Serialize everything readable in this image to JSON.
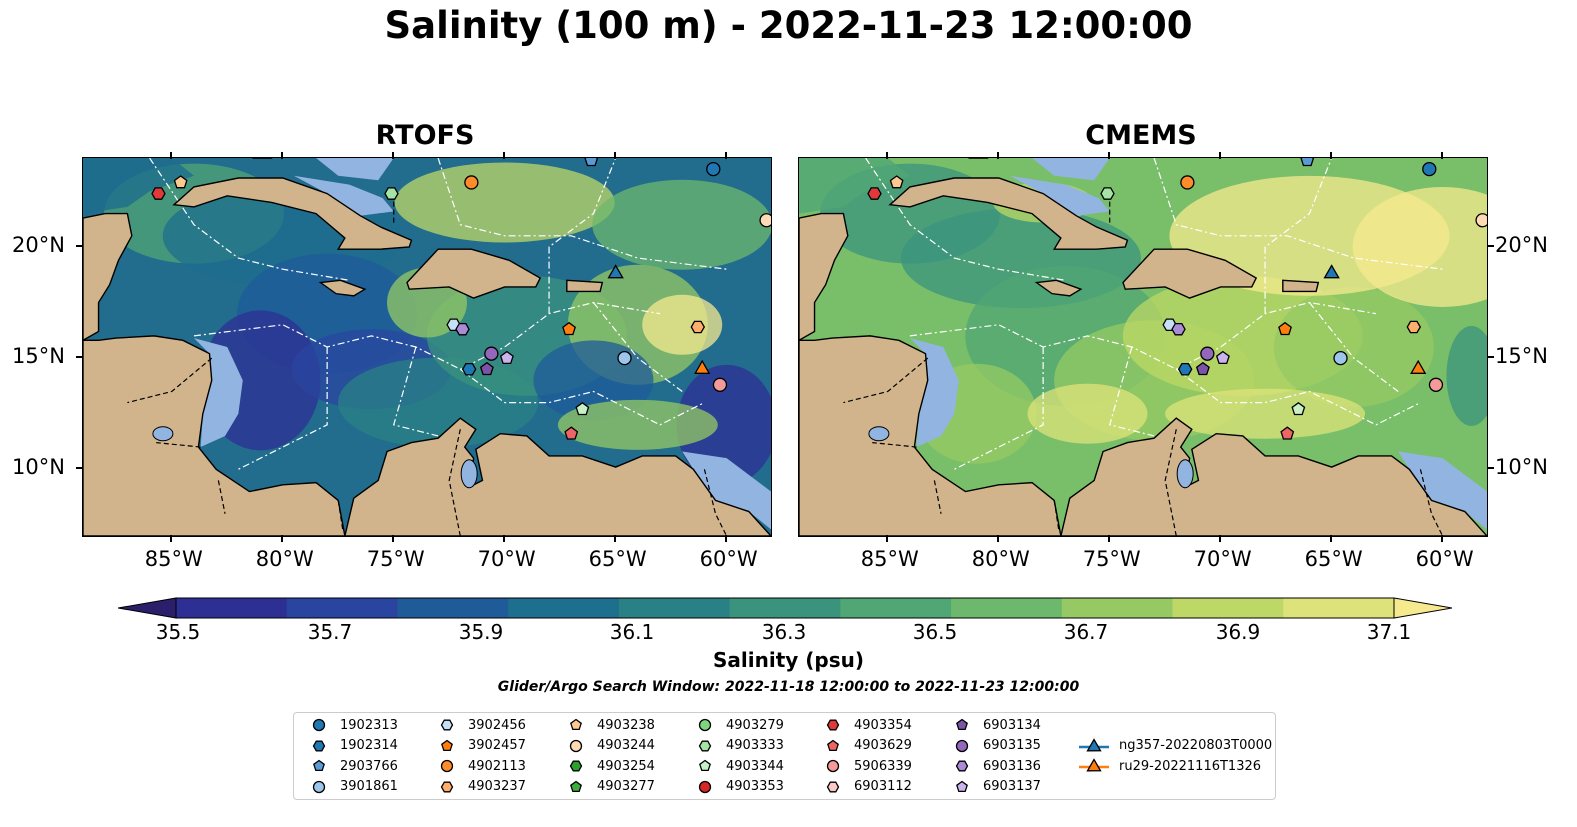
{
  "title": "Salinity (100 m) - 2022-11-23 12:00:00",
  "panels": [
    {
      "title": "RTOFS",
      "style": "rtofs"
    },
    {
      "title": "CMEMS",
      "style": "cmems"
    }
  ],
  "longitude_ticks": [
    "85°W",
    "80°W",
    "75°W",
    "70°W",
    "65°W",
    "60°W"
  ],
  "latitude_ticks": [
    "20°N",
    "15°N",
    "10°N"
  ],
  "colorbar": {
    "labels": [
      "35.5",
      "35.7",
      "35.9",
      "36.1",
      "36.3",
      "36.5",
      "36.7",
      "36.9",
      "37.1"
    ],
    "title": "Salinity (psu)",
    "colors": [
      "#2b1f6b",
      "#2e2f94",
      "#2a45a0",
      "#1f5b99",
      "#1e6e8d",
      "#2a8185",
      "#3b937d",
      "#50a674",
      "#6db86c",
      "#96c963",
      "#bdd866",
      "#dde37a",
      "#f6e98e"
    ]
  },
  "search_window": "Glider/Argo Search Window: 2022-11-18 12:00:00 to 2022-11-23 12:00:00",
  "colors": {
    "land": "#d2b48c",
    "shelf": "#92b4e0",
    "glider_line_blue": "#1f77b4",
    "glider_line_orange": "#ff7f0e"
  },
  "legend": [
    {
      "label": "1902313",
      "marker": "circle",
      "color": "#1f77b4"
    },
    {
      "label": "1902314",
      "marker": "hexagon",
      "color": "#1f77b4"
    },
    {
      "label": "2903766",
      "marker": "pentagon",
      "color": "#5b9bd5"
    },
    {
      "label": "3901861",
      "marker": "circle",
      "color": "#9ec5ea"
    },
    {
      "label": "3902456",
      "marker": "hexagon",
      "color": "#c6e0f5"
    },
    {
      "label": "3902457",
      "marker": "pentagon",
      "color": "#ff7f0e"
    },
    {
      "label": "4902113",
      "marker": "circle",
      "color": "#ff8c2a"
    },
    {
      "label": "4903237",
      "marker": "hexagon",
      "color": "#ffae6b"
    },
    {
      "label": "4903238",
      "marker": "pentagon",
      "color": "#ffc890"
    },
    {
      "label": "4903244",
      "marker": "circle",
      "color": "#ffdab5"
    },
    {
      "label": "4903254",
      "marker": "hexagon",
      "color": "#2ca02c"
    },
    {
      "label": "4903277",
      "marker": "pentagon",
      "color": "#3cae3c"
    },
    {
      "label": "4903279",
      "marker": "circle",
      "color": "#7fd47f"
    },
    {
      "label": "4903333",
      "marker": "hexagon",
      "color": "#a6e3a6"
    },
    {
      "label": "4903344",
      "marker": "pentagon",
      "color": "#c7f0c7"
    },
    {
      "label": "4903353",
      "marker": "circle",
      "color": "#d62728"
    },
    {
      "label": "4903354",
      "marker": "hexagon",
      "color": "#e0393a"
    },
    {
      "label": "4903629",
      "marker": "pentagon",
      "color": "#ee6566"
    },
    {
      "label": "5906339",
      "marker": "circle",
      "color": "#f49a9a"
    },
    {
      "label": "6903112",
      "marker": "hexagon",
      "color": "#fcc8c8"
    },
    {
      "label": "6903134",
      "marker": "pentagon",
      "color": "#7b54a8"
    },
    {
      "label": "6903135",
      "marker": "circle",
      "color": "#9467bd"
    },
    {
      "label": "6903136",
      "marker": "hexagon",
      "color": "#a98bd6"
    },
    {
      "label": "6903137",
      "marker": "pentagon",
      "color": "#cbb3ec"
    },
    {
      "label": "ng357-20220803T0000",
      "marker": "triangle-line",
      "color": "#1f77b4"
    },
    {
      "label": "ru29-20221116T1326",
      "marker": "triangle-line",
      "color": "#ff7f0e"
    }
  ],
  "markers": [
    {
      "id": "4903354",
      "lon": -85.6,
      "lat": 22.4,
      "shape": "hexagon",
      "color": "#e0393a"
    },
    {
      "id": "4903238",
      "lon": -84.6,
      "lat": 22.9,
      "shape": "pentagon",
      "color": "#ffc890"
    },
    {
      "id": "4903333",
      "lon": -75.1,
      "lat": 22.4,
      "shape": "hexagon",
      "color": "#a6e3a6"
    },
    {
      "id": "4902113",
      "lon": -71.5,
      "lat": 22.9,
      "shape": "circle",
      "color": "#ff8c2a"
    },
    {
      "id": "2903766",
      "lon": -66.1,
      "lat": 23.9,
      "shape": "pentagon",
      "color": "#5b9bd5"
    },
    {
      "id": "1902313",
      "lon": -60.6,
      "lat": 23.5,
      "shape": "circle",
      "color": "#1f77b4"
    },
    {
      "id": "4903244",
      "lon": -58.2,
      "lat": 21.2,
      "shape": "circle",
      "color": "#ffdab5"
    },
    {
      "id": "ng357",
      "lon": -65.0,
      "lat": 18.8,
      "shape": "triangle",
      "color": "#1f77b4"
    },
    {
      "id": "3902457",
      "lon": -67.1,
      "lat": 16.3,
      "shape": "pentagon",
      "color": "#ff7f0e"
    },
    {
      "id": "3902456",
      "lon": -72.3,
      "lat": 16.5,
      "shape": "hexagon",
      "color": "#c6e0f5"
    },
    {
      "id": "6903136",
      "lon": -71.9,
      "lat": 16.3,
      "shape": "hexagon",
      "color": "#a98bd6"
    },
    {
      "id": "6903135",
      "lon": -70.6,
      "lat": 15.2,
      "shape": "circle",
      "color": "#9467bd"
    },
    {
      "id": "6903137",
      "lon": -69.9,
      "lat": 15.0,
      "shape": "pentagon",
      "color": "#cbb3ec"
    },
    {
      "id": "1902314",
      "lon": -71.6,
      "lat": 14.5,
      "shape": "hexagon",
      "color": "#1f77b4"
    },
    {
      "id": "6903134",
      "lon": -70.8,
      "lat": 14.5,
      "shape": "pentagon",
      "color": "#7b54a8"
    },
    {
      "id": "3901861",
      "lon": -64.6,
      "lat": 15.0,
      "shape": "circle",
      "color": "#9ec5ea"
    },
    {
      "id": "4903237",
      "lon": -61.3,
      "lat": 16.4,
      "shape": "hexagon",
      "color": "#ffae6b"
    },
    {
      "id": "ru29",
      "lon": -61.1,
      "lat": 14.5,
      "shape": "triangle",
      "color": "#ff7f0e"
    },
    {
      "id": "5906339",
      "lon": -60.3,
      "lat": 13.8,
      "shape": "circle",
      "color": "#f49a9a"
    },
    {
      "id": "4903344",
      "lon": -66.5,
      "lat": 12.7,
      "shape": "pentagon",
      "color": "#c7f0c7"
    },
    {
      "id": "4903629",
      "lon": -67.0,
      "lat": 11.6,
      "shape": "pentagon",
      "color": "#ee6566"
    }
  ]
}
